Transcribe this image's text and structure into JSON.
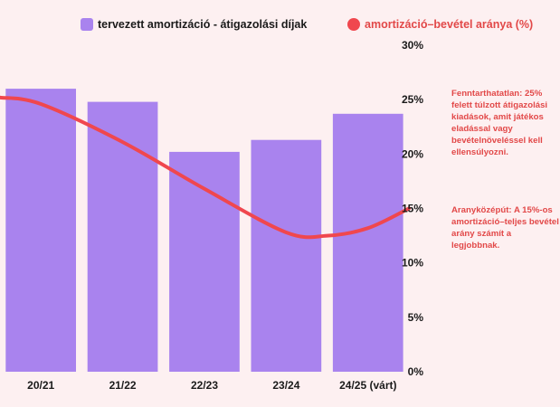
{
  "chart_data": {
    "type": "bar",
    "categories": [
      "20/21",
      "21/22",
      "22/23",
      "23/24",
      "24/25 (várt)"
    ],
    "series": [
      {
        "name": "tervezett amortizáció - átigazolási díjak",
        "kind": "bar",
        "color": "#a983ee",
        "values": [
          26.0,
          24.8,
          20.2,
          21.3,
          23.7
        ]
      },
      {
        "name": "amortizáció–bevétel aránya (%)",
        "kind": "line",
        "color": "#f0474e",
        "curve_points": [
          [
            0,
            24.6
          ],
          [
            1,
            21.1
          ],
          [
            2,
            16.8
          ],
          [
            3,
            12.8
          ],
          [
            3.5,
            12.5
          ],
          [
            4,
            13.2
          ],
          [
            4.5,
            15.0
          ]
        ]
      }
    ],
    "y_axis": {
      "position": "right",
      "ylim": [
        0,
        30
      ],
      "ticks": [
        "0%",
        "5%",
        "10%",
        "15%",
        "20%",
        "25%",
        "30%"
      ]
    },
    "legend_placement": "top"
  },
  "annotations": [
    "Fenntarthatatlan: 25% felett túlzott átigazolási kiadások, amit játékos eladással vagy bevételnöveléssel kell ellensúlyozni.",
    "Aranyközépút: A 15%-os amortizáció–teljes bevétel arány számít a legjobbnak."
  ]
}
